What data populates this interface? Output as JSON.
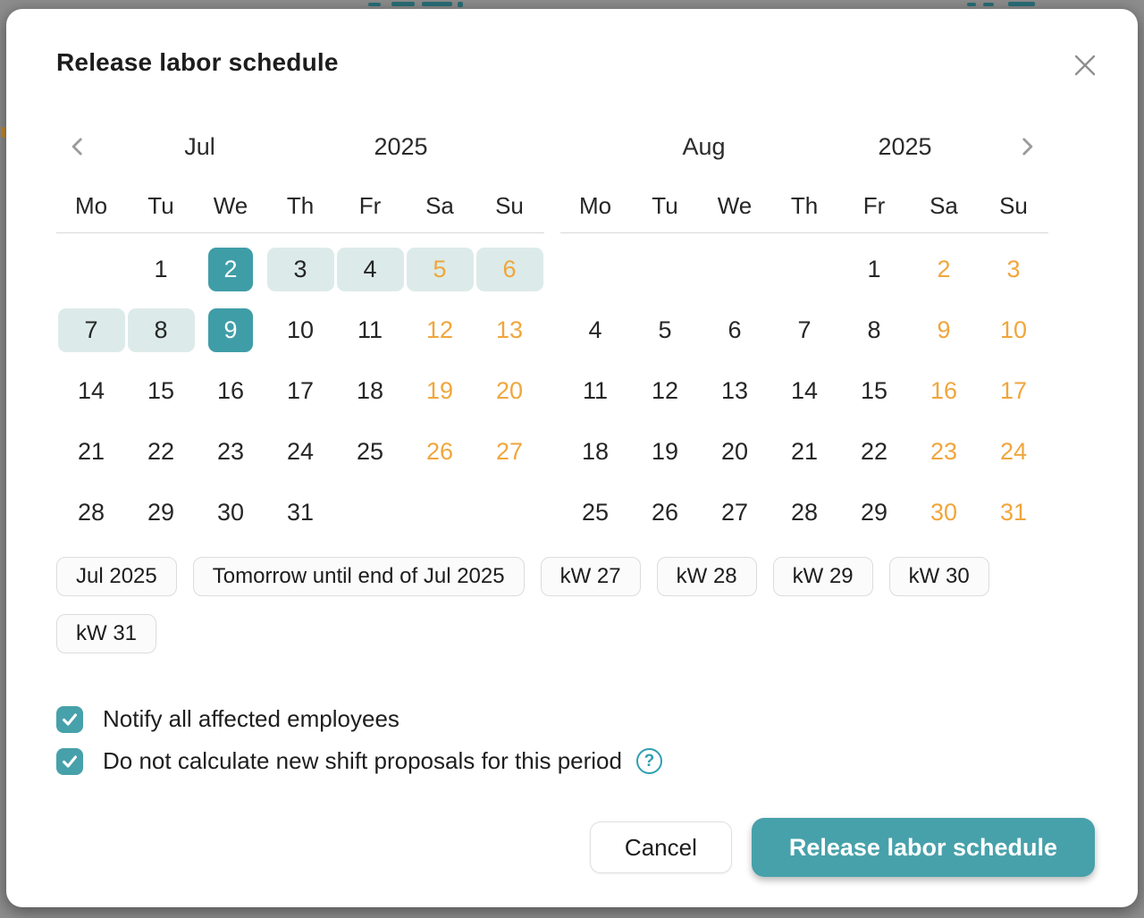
{
  "dialog": {
    "title": "Release labor schedule",
    "close_icon": "close"
  },
  "colors": {
    "accent_teal": "#47a1aa",
    "selected_day": "#3f9da7",
    "range_fill": "#dcebe9",
    "weekend_text": "#f0a63c",
    "chip_border": "#dcdcdc",
    "backdrop": "#8d8d8d"
  },
  "calendar": {
    "weekdays": [
      "Mo",
      "Tu",
      "We",
      "Th",
      "Fr",
      "Sa",
      "Su"
    ],
    "months": [
      {
        "name": "Jul",
        "year": "2025",
        "weeks": [
          [
            {
              "d": "",
              "s": "empty"
            },
            {
              "d": "1",
              "s": ""
            },
            {
              "d": "2",
              "s": "selected"
            },
            {
              "d": "3",
              "s": "range"
            },
            {
              "d": "4",
              "s": "range"
            },
            {
              "d": "5",
              "s": "range-weekend"
            },
            {
              "d": "6",
              "s": "range-weekend"
            }
          ],
          [
            {
              "d": "7",
              "s": "range"
            },
            {
              "d": "8",
              "s": "range"
            },
            {
              "d": "9",
              "s": "selected"
            },
            {
              "d": "10",
              "s": ""
            },
            {
              "d": "11",
              "s": ""
            },
            {
              "d": "12",
              "s": "weekend"
            },
            {
              "d": "13",
              "s": "weekend"
            }
          ],
          [
            {
              "d": "14",
              "s": ""
            },
            {
              "d": "15",
              "s": ""
            },
            {
              "d": "16",
              "s": ""
            },
            {
              "d": "17",
              "s": ""
            },
            {
              "d": "18",
              "s": ""
            },
            {
              "d": "19",
              "s": "weekend"
            },
            {
              "d": "20",
              "s": "weekend"
            }
          ],
          [
            {
              "d": "21",
              "s": ""
            },
            {
              "d": "22",
              "s": ""
            },
            {
              "d": "23",
              "s": ""
            },
            {
              "d": "24",
              "s": ""
            },
            {
              "d": "25",
              "s": ""
            },
            {
              "d": "26",
              "s": "weekend"
            },
            {
              "d": "27",
              "s": "weekend"
            }
          ],
          [
            {
              "d": "28",
              "s": ""
            },
            {
              "d": "29",
              "s": ""
            },
            {
              "d": "30",
              "s": ""
            },
            {
              "d": "31",
              "s": ""
            },
            {
              "d": "",
              "s": "empty"
            },
            {
              "d": "",
              "s": "empty"
            },
            {
              "d": "",
              "s": "empty"
            }
          ]
        ]
      },
      {
        "name": "Aug",
        "year": "2025",
        "weeks": [
          [
            {
              "d": "",
              "s": "empty"
            },
            {
              "d": "",
              "s": "empty"
            },
            {
              "d": "",
              "s": "empty"
            },
            {
              "d": "",
              "s": "empty"
            },
            {
              "d": "1",
              "s": ""
            },
            {
              "d": "2",
              "s": "weekend"
            },
            {
              "d": "3",
              "s": "weekend"
            }
          ],
          [
            {
              "d": "4",
              "s": ""
            },
            {
              "d": "5",
              "s": ""
            },
            {
              "d": "6",
              "s": ""
            },
            {
              "d": "7",
              "s": ""
            },
            {
              "d": "8",
              "s": ""
            },
            {
              "d": "9",
              "s": "weekend"
            },
            {
              "d": "10",
              "s": "weekend"
            }
          ],
          [
            {
              "d": "11",
              "s": ""
            },
            {
              "d": "12",
              "s": ""
            },
            {
              "d": "13",
              "s": ""
            },
            {
              "d": "14",
              "s": ""
            },
            {
              "d": "15",
              "s": ""
            },
            {
              "d": "16",
              "s": "weekend"
            },
            {
              "d": "17",
              "s": "weekend"
            }
          ],
          [
            {
              "d": "18",
              "s": ""
            },
            {
              "d": "19",
              "s": ""
            },
            {
              "d": "20",
              "s": ""
            },
            {
              "d": "21",
              "s": ""
            },
            {
              "d": "22",
              "s": ""
            },
            {
              "d": "23",
              "s": "weekend"
            },
            {
              "d": "24",
              "s": "weekend"
            }
          ],
          [
            {
              "d": "25",
              "s": ""
            },
            {
              "d": "26",
              "s": ""
            },
            {
              "d": "27",
              "s": ""
            },
            {
              "d": "28",
              "s": ""
            },
            {
              "d": "29",
              "s": ""
            },
            {
              "d": "30",
              "s": "weekend"
            },
            {
              "d": "31",
              "s": "weekend"
            }
          ]
        ]
      }
    ]
  },
  "quick_select": {
    "chips": [
      "Jul 2025",
      "Tomorrow until end of Jul 2025",
      "kW 27",
      "kW 28",
      "kW 29",
      "kW 30",
      "kW 31"
    ]
  },
  "options": [
    {
      "label": "Notify all affected employees",
      "checked": true,
      "help": false
    },
    {
      "label": "Do not calculate new shift proposals for this period",
      "checked": true,
      "help": true
    }
  ],
  "actions": {
    "cancel": "Cancel",
    "submit": "Release labor schedule"
  }
}
